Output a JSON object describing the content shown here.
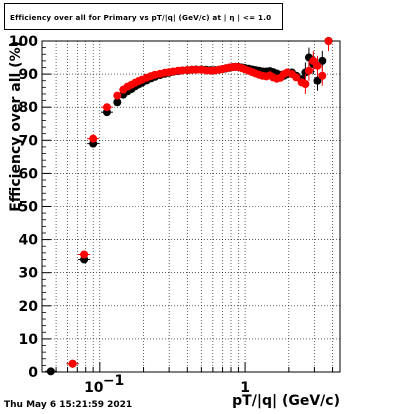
{
  "header": {
    "title": "Efficiency over all for Primary vs pT/|q| (GeV/c) at | η | <= 1.0"
  },
  "footer": {
    "timestamp": "Thu May  6 15:21:59 2021"
  },
  "colors": {
    "series_black": "#000000",
    "series_red": "#ff0000",
    "grid": "#000000"
  },
  "chart_data": {
    "type": "scatter",
    "title": "Efficiency over all for Primary vs pT/|q| (GeV/c) at | η | <= 1.0",
    "xlabel": "pT/|q| (GeV/c)",
    "ylabel": "Efficiency over all (%)",
    "xscale": "log",
    "xlim": [
      0.04,
      4.5
    ],
    "ylim": [
      0,
      100
    ],
    "grid": true,
    "x_tick_labels": [
      {
        "value": 0.1,
        "base": "10",
        "exp": "−1"
      },
      {
        "value": 1,
        "base": "1",
        "exp": ""
      }
    ],
    "y_ticks": [
      0,
      10,
      20,
      30,
      40,
      50,
      60,
      70,
      80,
      90,
      100
    ],
    "series": [
      {
        "color": "black",
        "points": [
          [
            0.046,
            0.2
          ],
          [
            0.065,
            2.5
          ],
          [
            0.078,
            34
          ],
          [
            0.09,
            69
          ],
          [
            0.112,
            78.5
          ],
          [
            0.132,
            81.5
          ],
          [
            0.145,
            83.8
          ],
          [
            0.155,
            84.8
          ],
          [
            0.165,
            85.5
          ],
          [
            0.175,
            86.3
          ],
          [
            0.185,
            86.9
          ],
          [
            0.195,
            87.4
          ],
          [
            0.21,
            88.1
          ],
          [
            0.225,
            88.7
          ],
          [
            0.24,
            89.2
          ],
          [
            0.26,
            89.7
          ],
          [
            0.28,
            90.1
          ],
          [
            0.3,
            90.4
          ],
          [
            0.32,
            90.7
          ],
          [
            0.345,
            90.9
          ],
          [
            0.37,
            91.1
          ],
          [
            0.4,
            91.2
          ],
          [
            0.43,
            91.3
          ],
          [
            0.46,
            91.4
          ],
          [
            0.5,
            91.4
          ],
          [
            0.54,
            91.3
          ],
          [
            0.58,
            91.2
          ],
          [
            0.62,
            91.2
          ],
          [
            0.66,
            91.3
          ],
          [
            0.7,
            91.5
          ],
          [
            0.74,
            91.7
          ],
          [
            0.78,
            91.9
          ],
          [
            0.82,
            92.1
          ],
          [
            0.86,
            92.2
          ],
          [
            0.9,
            92.2
          ],
          [
            0.95,
            92.0
          ],
          [
            1.0,
            91.8
          ],
          [
            1.06,
            91.6
          ],
          [
            1.12,
            91.4
          ],
          [
            1.18,
            91.2
          ],
          [
            1.25,
            91.0
          ],
          [
            1.32,
            90.8
          ],
          [
            1.4,
            90.8
          ],
          [
            1.48,
            90.9
          ],
          [
            1.56,
            90.6
          ],
          [
            1.65,
            90.2
          ],
          [
            1.75,
            89.8
          ],
          [
            1.85,
            89.5
          ],
          [
            1.95,
            90.0
          ],
          [
            2.1,
            90.5
          ],
          [
            2.25,
            89.5
          ],
          [
            2.45,
            88.5
          ],
          [
            2.6,
            90.5
          ],
          [
            2.75,
            95
          ],
          [
            2.95,
            93
          ],
          [
            3.15,
            88
          ],
          [
            3.4,
            94
          ],
          [
            3.75,
            100
          ]
        ]
      },
      {
        "color": "red",
        "points": [
          [
            0.065,
            2.5
          ],
          [
            0.078,
            35.5
          ],
          [
            0.09,
            70.5
          ],
          [
            0.112,
            80
          ],
          [
            0.132,
            83.5
          ],
          [
            0.145,
            85.3
          ],
          [
            0.155,
            86.2
          ],
          [
            0.165,
            86.8
          ],
          [
            0.175,
            87.4
          ],
          [
            0.185,
            87.9
          ],
          [
            0.195,
            88.3
          ],
          [
            0.21,
            88.9
          ],
          [
            0.225,
            89.4
          ],
          [
            0.24,
            89.8
          ],
          [
            0.26,
            90.1
          ],
          [
            0.28,
            90.4
          ],
          [
            0.3,
            90.6
          ],
          [
            0.32,
            90.8
          ],
          [
            0.345,
            91.0
          ],
          [
            0.37,
            91.1
          ],
          [
            0.4,
            91.2
          ],
          [
            0.43,
            91.3
          ],
          [
            0.46,
            91.3
          ],
          [
            0.5,
            91.3
          ],
          [
            0.54,
            91.1
          ],
          [
            0.58,
            91.0
          ],
          [
            0.62,
            91.1
          ],
          [
            0.66,
            91.3
          ],
          [
            0.7,
            91.5
          ],
          [
            0.74,
            91.8
          ],
          [
            0.78,
            92.0
          ],
          [
            0.82,
            92.1
          ],
          [
            0.86,
            92.2
          ],
          [
            0.9,
            92.1
          ],
          [
            0.95,
            91.8
          ],
          [
            1.0,
            91.4
          ],
          [
            1.06,
            91.0
          ],
          [
            1.12,
            90.6
          ],
          [
            1.18,
            90.2
          ],
          [
            1.25,
            89.8
          ],
          [
            1.32,
            89.5
          ],
          [
            1.4,
            89.3
          ],
          [
            1.48,
            89.6
          ],
          [
            1.56,
            89.0
          ],
          [
            1.65,
            88.6
          ],
          [
            1.75,
            88.9
          ],
          [
            1.85,
            90.0
          ],
          [
            1.95,
            90.5
          ],
          [
            2.1,
            90.0
          ],
          [
            2.25,
            89.0
          ],
          [
            2.45,
            87.5
          ],
          [
            2.6,
            87.0
          ],
          [
            2.75,
            91
          ],
          [
            2.95,
            94
          ],
          [
            3.15,
            92.5
          ],
          [
            3.4,
            89.5
          ],
          [
            3.75,
            100
          ]
        ]
      }
    ]
  }
}
